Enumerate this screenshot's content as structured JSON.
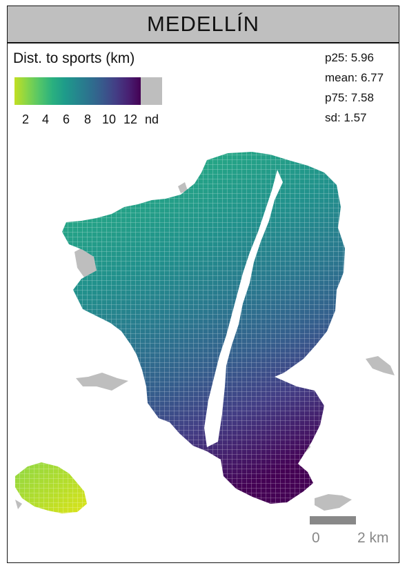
{
  "title": "MEDELLÍN",
  "legend": {
    "title": "Dist. to sports (km)",
    "ticks": [
      "2",
      "4",
      "6",
      "8",
      "10",
      "12",
      "nd"
    ]
  },
  "stats": {
    "p25": "p25: 5.96",
    "mean": "mean: 6.77",
    "p75": "p75: 7.58",
    "sd": "sd: 1.57"
  },
  "scale": {
    "start": "0",
    "end": "2 km"
  },
  "colors": {
    "nodata": "#bebebe",
    "palette": "viridis (reversed)"
  }
}
